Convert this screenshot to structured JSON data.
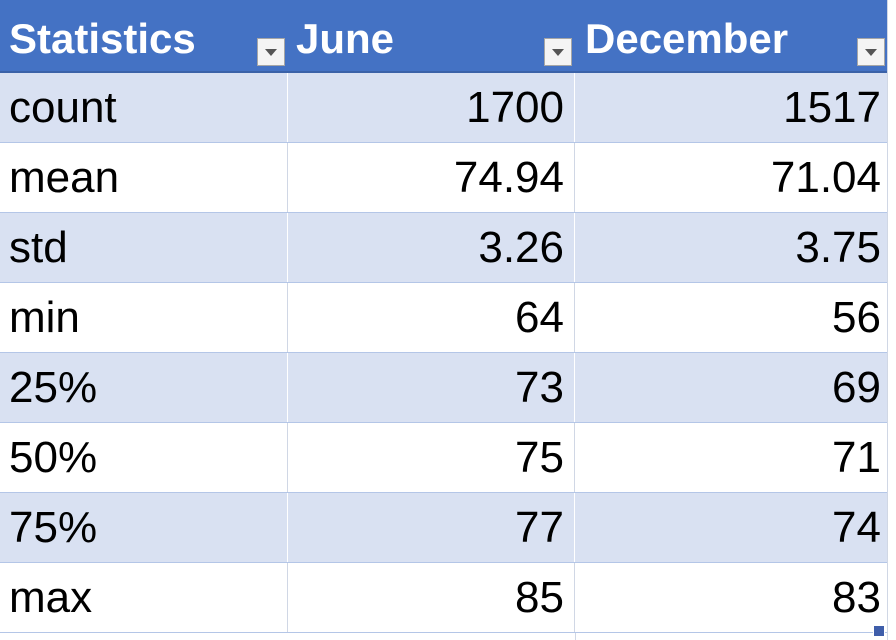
{
  "table": {
    "headers": [
      "Statistics",
      "June",
      "December"
    ],
    "rows": [
      {
        "label": "count",
        "june": "1700",
        "december": "1517"
      },
      {
        "label": "mean",
        "june": "74.94",
        "december": "71.04"
      },
      {
        "label": "std",
        "june": "3.26",
        "december": "3.75"
      },
      {
        "label": "min",
        "june": "64",
        "december": "56"
      },
      {
        "label": "25%",
        "june": "73",
        "december": "69"
      },
      {
        "label": "50%",
        "june": "75",
        "december": "71"
      },
      {
        "label": "75%",
        "june": "77",
        "december": "74"
      },
      {
        "label": "max",
        "june": "85",
        "december": "83"
      }
    ]
  },
  "icons": {
    "filter": "dropdown-arrow-icon",
    "fill_handle": "fill-handle"
  },
  "colors": {
    "header_bg": "#4472c4",
    "band_bg": "#d9e1f2",
    "plain_bg": "#ffffff",
    "header_text": "#ffffff",
    "body_text": "#000000"
  }
}
